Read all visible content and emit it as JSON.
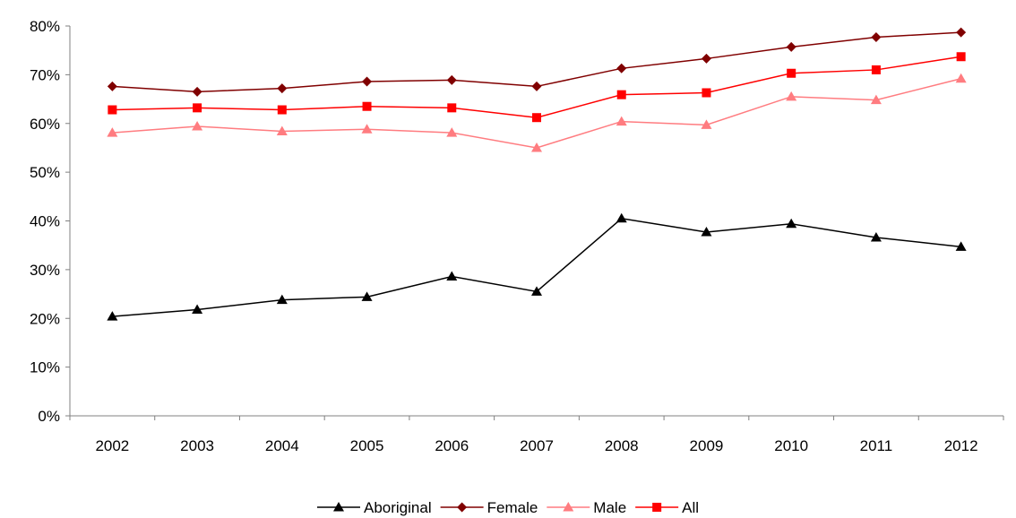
{
  "chart_data": {
    "type": "line",
    "title": "",
    "xlabel": "",
    "ylabel": "",
    "categories": [
      "2002",
      "2003",
      "2004",
      "2005",
      "2006",
      "2007",
      "2008",
      "2009",
      "2010",
      "2011",
      "2012"
    ],
    "ylim": [
      0,
      0.8
    ],
    "yticks": [
      0,
      0.1,
      0.2,
      0.3,
      0.4,
      0.5,
      0.6,
      0.7,
      0.8
    ],
    "ytick_labels": [
      "0%",
      "10%",
      "20%",
      "30%",
      "40%",
      "50%",
      "60%",
      "70%",
      "80%"
    ],
    "grid": false,
    "legend_position": "bottom",
    "series": [
      {
        "name": "Aboriginal",
        "color": "#000000",
        "marker": "triangle",
        "values": [
          0.204,
          0.218,
          0.238,
          0.244,
          0.286,
          0.255,
          0.405,
          0.377,
          0.394,
          0.366,
          0.347
        ]
      },
      {
        "name": "Female",
        "color": "#800000",
        "marker": "diamond",
        "values": [
          0.676,
          0.665,
          0.672,
          0.686,
          0.689,
          0.676,
          0.713,
          0.733,
          0.757,
          0.777,
          0.787
        ]
      },
      {
        "name": "Male",
        "color": "#ff7c80",
        "marker": "triangle",
        "values": [
          0.581,
          0.594,
          0.584,
          0.588,
          0.581,
          0.55,
          0.604,
          0.597,
          0.655,
          0.648,
          0.692
        ]
      },
      {
        "name": "All",
        "color": "#ff0000",
        "marker": "square",
        "values": [
          0.628,
          0.632,
          0.628,
          0.635,
          0.632,
          0.612,
          0.659,
          0.663,
          0.703,
          0.71,
          0.737
        ]
      }
    ]
  }
}
